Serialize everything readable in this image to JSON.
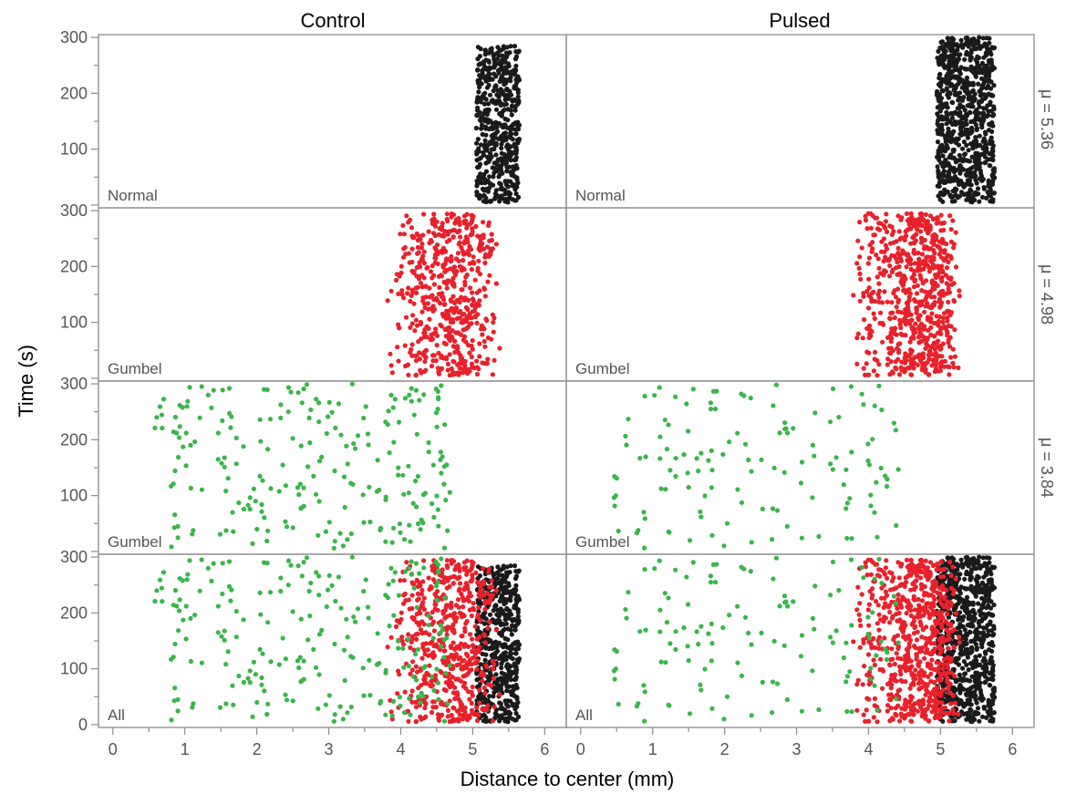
{
  "chart_data": {
    "type": "scatter",
    "xlabel": "Distance to center (mm)",
    "ylabel": "Time (s)",
    "columns": [
      "Control",
      "Pulsed"
    ],
    "rows": [
      {
        "id": "normal",
        "label": "μ = 5.36",
        "panel_label": "Normal",
        "color": "#1a1a1a"
      },
      {
        "id": "gumbel_red",
        "label": "μ = 4.98",
        "panel_label": "Gumbel",
        "color": "#e8212b"
      },
      {
        "id": "gumbel_green",
        "label": "μ = 3.84",
        "panel_label": "Gumbel",
        "color": "#39b54a"
      },
      {
        "id": "all",
        "label": "",
        "panel_label": "All",
        "color": ""
      }
    ],
    "xlim": [
      -0.2,
      6.3
    ],
    "ylim": [
      -5,
      305
    ],
    "x_ticks": [
      "0",
      "1",
      "2",
      "3",
      "4",
      "5",
      "6"
    ],
    "y_ticks": [
      "0",
      "100",
      "200",
      "300"
    ],
    "grid": false,
    "series": {
      "Control": {
        "normal": {
          "distribution": "uniform band",
          "x_range": [
            5.05,
            5.65
          ],
          "y_range": [
            5,
            285
          ],
          "approx_count": 520
        },
        "gumbel_red": {
          "distribution": "band",
          "x_range": [
            3.8,
            5.4
          ],
          "x_mode": 4.8,
          "y_range": [
            5,
            295
          ],
          "approx_count": 560
        },
        "gumbel_green": {
          "distribution": "sparse",
          "x_range": [
            0.55,
            4.7
          ],
          "y_range": [
            5,
            300
          ],
          "approx_count": 230
        }
      },
      "Pulsed": {
        "normal": {
          "distribution": "uniform band",
          "x_range": [
            4.95,
            5.75
          ],
          "y_range": [
            5,
            300
          ],
          "approx_count": 780
        },
        "gumbel_red": {
          "distribution": "band",
          "x_range": [
            3.75,
            5.3
          ],
          "x_mode": 4.9,
          "y_range": [
            5,
            295
          ],
          "approx_count": 680
        },
        "gumbel_green": {
          "distribution": "sparse",
          "x_range": [
            0.45,
            4.45
          ],
          "y_range": [
            5,
            300
          ],
          "approx_count": 130
        }
      }
    }
  }
}
